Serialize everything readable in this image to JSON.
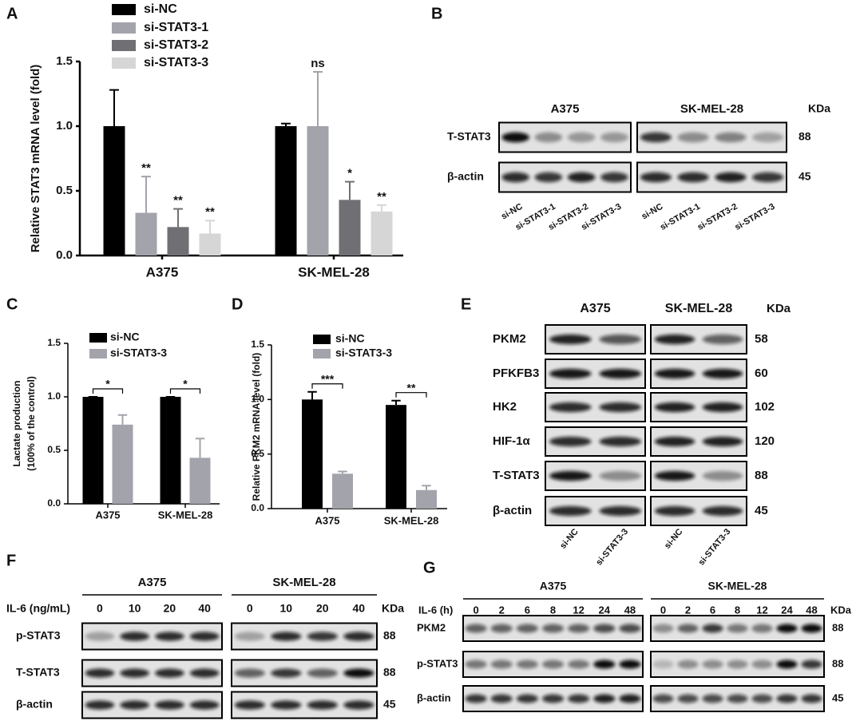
{
  "panel_labels": [
    "A",
    "B",
    "C",
    "D",
    "E",
    "F",
    "G"
  ],
  "chart_data": [
    {
      "type": "bar",
      "ylabel": "Relative STAT3 mRNA  level (fold)",
      "categories": [
        "A375",
        "SK-MEL-28"
      ],
      "series": [
        {
          "name": "si-NC",
          "color": "#000000",
          "values": [
            1.0,
            1.0
          ],
          "errors": [
            0.28,
            0.02
          ],
          "significance": [
            null,
            null
          ]
        },
        {
          "name": "si-STAT3-1",
          "color": "#a3a3ab",
          "values": [
            0.33,
            1.0
          ],
          "errors": [
            0.28,
            0.42
          ],
          "significance": [
            "**",
            "ns"
          ]
        },
        {
          "name": "si-STAT3-2",
          "color": "#707074",
          "values": [
            0.22,
            0.43
          ],
          "errors": [
            0.14,
            0.14
          ],
          "significance": [
            "**",
            "*"
          ]
        },
        {
          "name": "si-STAT3-3",
          "color": "#d6d6d6",
          "values": [
            0.17,
            0.34
          ],
          "errors": [
            0.1,
            0.05
          ],
          "significance": [
            "**",
            "**"
          ]
        }
      ],
      "ylim": [
        0,
        1.5
      ],
      "yticks": [
        {
          "value": 0,
          "label": "0.0"
        },
        0.5,
        {
          "value": 1,
          "label": "1.0"
        },
        1.5
      ]
    },
    {
      "type": "bar",
      "ylabel": [
        "Lactate production",
        "(100% of the control)"
      ],
      "categories": [
        "A375",
        "SK-MEL-28"
      ],
      "series": [
        {
          "name": "si-NC",
          "color": "#000000",
          "values": [
            1.0,
            1.0
          ],
          "errors": [
            0,
            0
          ]
        },
        {
          "name": "si-STAT3-3",
          "color": "#a3a3ab",
          "values": [
            0.74,
            0.43
          ],
          "errors": [
            0.09,
            0.18
          ]
        }
      ],
      "significance": [
        "*",
        "*"
      ],
      "ylim": [
        0,
        1.5
      ],
      "yticks": [
        {
          "value": 0,
          "label": "0.0"
        },
        0.5,
        {
          "value": 1,
          "label": "1.0"
        },
        1.5
      ]
    },
    {
      "type": "bar",
      "ylabel": "Relative PKM2 mRNA  level (fold)",
      "categories": [
        "A375",
        "SK-MEL-28"
      ],
      "series": [
        {
          "name": "si-NC",
          "color": "#000000",
          "values": [
            1.0,
            0.95
          ],
          "errors": [
            0.07,
            0.04
          ]
        },
        {
          "name": "si-STAT3-3",
          "color": "#a3a3ab",
          "values": [
            0.32,
            0.17
          ],
          "errors": [
            0.02,
            0.04
          ]
        }
      ],
      "significance": [
        "***",
        "**"
      ],
      "ylim": [
        0,
        1.5
      ],
      "yticks": [
        {
          "value": 0,
          "label": "0.0"
        },
        0.5,
        {
          "value": 1,
          "label": "1.0"
        },
        1.5
      ]
    }
  ],
  "blots": {
    "B": {
      "unit": "KDa",
      "groups": [
        {
          "name": "A375",
          "lanes": [
            "si-NC",
            "si-STAT3-1",
            "si-STAT3-2",
            "si-STAT3-3"
          ]
        },
        {
          "name": "SK-MEL-28",
          "lanes": [
            "si-NC",
            "si-STAT3-1",
            "si-STAT3-2",
            "si-STAT3-3"
          ]
        }
      ],
      "rows": [
        {
          "name": "T-STAT3",
          "kda": "88"
        },
        {
          "name": "β-actin",
          "kda": "45"
        }
      ]
    },
    "E": {
      "unit": "KDa",
      "groups": [
        {
          "name": "A375",
          "lanes": [
            "si-NC",
            "si-STAT3-3"
          ]
        },
        {
          "name": "SK-MEL-28",
          "lanes": [
            "si-NC",
            "si-STAT3-3"
          ]
        }
      ],
      "rows": [
        {
          "name": "PKM2",
          "kda": "58"
        },
        {
          "name": "PFKFB3",
          "kda": "60"
        },
        {
          "name": "HK2",
          "kda": "102"
        },
        {
          "name": "HIF-1α",
          "kda": "120"
        },
        {
          "name": "T-STAT3",
          "kda": "88"
        },
        {
          "name": "β-actin",
          "kda": "45"
        }
      ]
    },
    "F": {
      "unit": "KDa",
      "treatment": "IL-6 (ng/mL)",
      "groups": [
        {
          "name": "A375",
          "lanes": [
            "0",
            "10",
            "20",
            "40"
          ]
        },
        {
          "name": "SK-MEL-28",
          "lanes": [
            "0",
            "10",
            "20",
            "40"
          ]
        }
      ],
      "rows": [
        {
          "name": "p-STAT3",
          "kda": "88"
        },
        {
          "name": "T-STAT3",
          "kda": "88"
        },
        {
          "name": "β-actin",
          "kda": "45"
        }
      ]
    },
    "G": {
      "unit": "KDa",
      "treatment": "IL-6 (h)",
      "groups": [
        {
          "name": "A375",
          "lanes": [
            "0",
            "2",
            "6",
            "8",
            "12",
            "24",
            "48"
          ]
        },
        {
          "name": "SK-MEL-28",
          "lanes": [
            "0",
            "2",
            "6",
            "8",
            "12",
            "24",
            "48"
          ]
        }
      ],
      "rows": [
        {
          "name": "PKM2",
          "kda": "88"
        },
        {
          "name": "p-STAT3",
          "kda": "88"
        },
        {
          "name": "β-actin",
          "kda": "45"
        }
      ]
    }
  }
}
